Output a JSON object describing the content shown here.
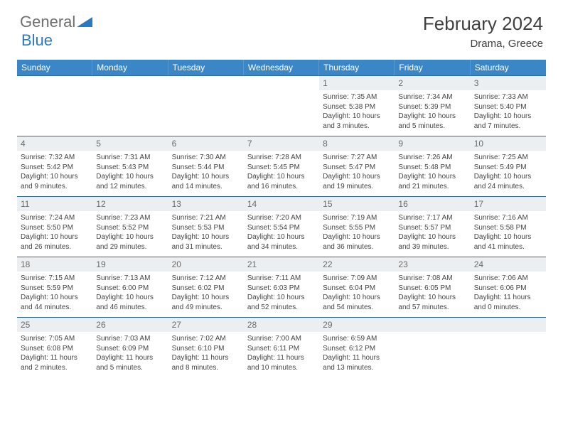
{
  "brand": {
    "part1": "General",
    "part2": "Blue"
  },
  "title": "February 2024",
  "location": "Drama, Greece",
  "colors": {
    "header_bg": "#3b86c6",
    "header_text": "#ffffff",
    "week_border": "#2a6aa8",
    "daynum_bg": "#eceff1",
    "daynum_text": "#6a6a6a",
    "body_text": "#444444",
    "brand_gray": "#6f6f6f",
    "brand_blue": "#2a7abf"
  },
  "dow": [
    "Sunday",
    "Monday",
    "Tuesday",
    "Wednesday",
    "Thursday",
    "Friday",
    "Saturday"
  ],
  "weeks": [
    [
      null,
      null,
      null,
      null,
      {
        "n": "1",
        "sr": "7:35 AM",
        "ss": "5:38 PM",
        "dl": "10 hours and 3 minutes."
      },
      {
        "n": "2",
        "sr": "7:34 AM",
        "ss": "5:39 PM",
        "dl": "10 hours and 5 minutes."
      },
      {
        "n": "3",
        "sr": "7:33 AM",
        "ss": "5:40 PM",
        "dl": "10 hours and 7 minutes."
      }
    ],
    [
      {
        "n": "4",
        "sr": "7:32 AM",
        "ss": "5:42 PM",
        "dl": "10 hours and 9 minutes."
      },
      {
        "n": "5",
        "sr": "7:31 AM",
        "ss": "5:43 PM",
        "dl": "10 hours and 12 minutes."
      },
      {
        "n": "6",
        "sr": "7:30 AM",
        "ss": "5:44 PM",
        "dl": "10 hours and 14 minutes."
      },
      {
        "n": "7",
        "sr": "7:28 AM",
        "ss": "5:45 PM",
        "dl": "10 hours and 16 minutes."
      },
      {
        "n": "8",
        "sr": "7:27 AM",
        "ss": "5:47 PM",
        "dl": "10 hours and 19 minutes."
      },
      {
        "n": "9",
        "sr": "7:26 AM",
        "ss": "5:48 PM",
        "dl": "10 hours and 21 minutes."
      },
      {
        "n": "10",
        "sr": "7:25 AM",
        "ss": "5:49 PM",
        "dl": "10 hours and 24 minutes."
      }
    ],
    [
      {
        "n": "11",
        "sr": "7:24 AM",
        "ss": "5:50 PM",
        "dl": "10 hours and 26 minutes."
      },
      {
        "n": "12",
        "sr": "7:23 AM",
        "ss": "5:52 PM",
        "dl": "10 hours and 29 minutes."
      },
      {
        "n": "13",
        "sr": "7:21 AM",
        "ss": "5:53 PM",
        "dl": "10 hours and 31 minutes."
      },
      {
        "n": "14",
        "sr": "7:20 AM",
        "ss": "5:54 PM",
        "dl": "10 hours and 34 minutes."
      },
      {
        "n": "15",
        "sr": "7:19 AM",
        "ss": "5:55 PM",
        "dl": "10 hours and 36 minutes."
      },
      {
        "n": "16",
        "sr": "7:17 AM",
        "ss": "5:57 PM",
        "dl": "10 hours and 39 minutes."
      },
      {
        "n": "17",
        "sr": "7:16 AM",
        "ss": "5:58 PM",
        "dl": "10 hours and 41 minutes."
      }
    ],
    [
      {
        "n": "18",
        "sr": "7:15 AM",
        "ss": "5:59 PM",
        "dl": "10 hours and 44 minutes."
      },
      {
        "n": "19",
        "sr": "7:13 AM",
        "ss": "6:00 PM",
        "dl": "10 hours and 46 minutes."
      },
      {
        "n": "20",
        "sr": "7:12 AM",
        "ss": "6:02 PM",
        "dl": "10 hours and 49 minutes."
      },
      {
        "n": "21",
        "sr": "7:11 AM",
        "ss": "6:03 PM",
        "dl": "10 hours and 52 minutes."
      },
      {
        "n": "22",
        "sr": "7:09 AM",
        "ss": "6:04 PM",
        "dl": "10 hours and 54 minutes."
      },
      {
        "n": "23",
        "sr": "7:08 AM",
        "ss": "6:05 PM",
        "dl": "10 hours and 57 minutes."
      },
      {
        "n": "24",
        "sr": "7:06 AM",
        "ss": "6:06 PM",
        "dl": "11 hours and 0 minutes."
      }
    ],
    [
      {
        "n": "25",
        "sr": "7:05 AM",
        "ss": "6:08 PM",
        "dl": "11 hours and 2 minutes."
      },
      {
        "n": "26",
        "sr": "7:03 AM",
        "ss": "6:09 PM",
        "dl": "11 hours and 5 minutes."
      },
      {
        "n": "27",
        "sr": "7:02 AM",
        "ss": "6:10 PM",
        "dl": "11 hours and 8 minutes."
      },
      {
        "n": "28",
        "sr": "7:00 AM",
        "ss": "6:11 PM",
        "dl": "11 hours and 10 minutes."
      },
      {
        "n": "29",
        "sr": "6:59 AM",
        "ss": "6:12 PM",
        "dl": "11 hours and 13 minutes."
      },
      null,
      null
    ]
  ],
  "labels": {
    "sunrise": "Sunrise: ",
    "sunset": "Sunset: ",
    "daylight": "Daylight: "
  }
}
